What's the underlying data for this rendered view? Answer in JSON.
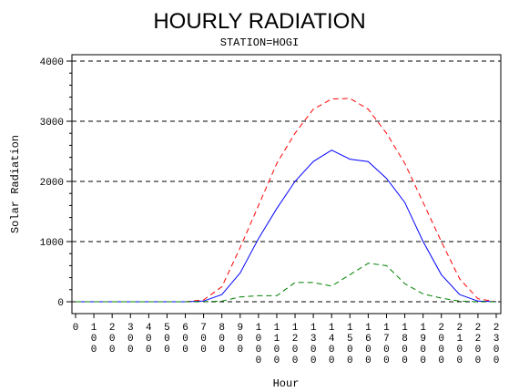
{
  "chart_data": {
    "type": "line",
    "title": "HOURLY RADIATION",
    "subtitle": "STATION=HOGI",
    "xlabel": "Hour",
    "ylabel": "Solar Radiation",
    "ylim": [
      0,
      4000
    ],
    "yticks": [
      "0",
      "1000",
      "2000",
      "3000",
      "4000"
    ],
    "grid": "horizontal dashed",
    "x": [
      "0",
      "100",
      "200",
      "300",
      "400",
      "500",
      "600",
      "700",
      "800",
      "900",
      "1000",
      "1100",
      "1200",
      "1300",
      "1400",
      "1500",
      "1600",
      "1700",
      "1800",
      "1900",
      "2000",
      "2100",
      "2200",
      "2300"
    ],
    "x_tick_labels": [
      [
        "0"
      ],
      [
        "1",
        "0",
        "0"
      ],
      [
        "2",
        "0",
        "0"
      ],
      [
        "3",
        "0",
        "0"
      ],
      [
        "4",
        "0",
        "0"
      ],
      [
        "5",
        "0",
        "0"
      ],
      [
        "6",
        "0",
        "0"
      ],
      [
        "7",
        "0",
        "0"
      ],
      [
        "8",
        "0",
        "0"
      ],
      [
        "9",
        "0",
        "0"
      ],
      [
        "1",
        "0",
        "0",
        "0"
      ],
      [
        "1",
        "1",
        "0",
        "0"
      ],
      [
        "1",
        "2",
        "0",
        "0"
      ],
      [
        "1",
        "3",
        "0",
        "0"
      ],
      [
        "1",
        "4",
        "0",
        "0"
      ],
      [
        "1",
        "5",
        "0",
        "0"
      ],
      [
        "1",
        "6",
        "0",
        "0"
      ],
      [
        "1",
        "7",
        "0",
        "0"
      ],
      [
        "1",
        "8",
        "0",
        "0"
      ],
      [
        "1",
        "9",
        "0",
        "0"
      ],
      [
        "2",
        "0",
        "0",
        "0"
      ],
      [
        "2",
        "1",
        "0",
        "0"
      ],
      [
        "2",
        "2",
        "0",
        "0"
      ],
      [
        "2",
        "3",
        "0",
        "0"
      ]
    ],
    "series": [
      {
        "color": "#ff0000",
        "dash": "dashed",
        "values": [
          0,
          0,
          0,
          0,
          0,
          0,
          0,
          30,
          250,
          900,
          1600,
          2300,
          2800,
          3200,
          3370,
          3380,
          3200,
          2800,
          2300,
          1650,
          1000,
          380,
          50,
          0
        ]
      },
      {
        "color": "#0000ff",
        "dash": "solid",
        "values": [
          0,
          0,
          0,
          0,
          0,
          0,
          0,
          10,
          120,
          480,
          1050,
          1550,
          2000,
          2330,
          2520,
          2370,
          2330,
          2050,
          1650,
          1000,
          450,
          120,
          10,
          0
        ]
      },
      {
        "color": "#008000",
        "dash": "dashed",
        "values": [
          0,
          0,
          0,
          0,
          0,
          0,
          0,
          0,
          10,
          80,
          100,
          100,
          320,
          320,
          260,
          450,
          640,
          600,
          300,
          130,
          60,
          10,
          0,
          0
        ]
      }
    ]
  }
}
